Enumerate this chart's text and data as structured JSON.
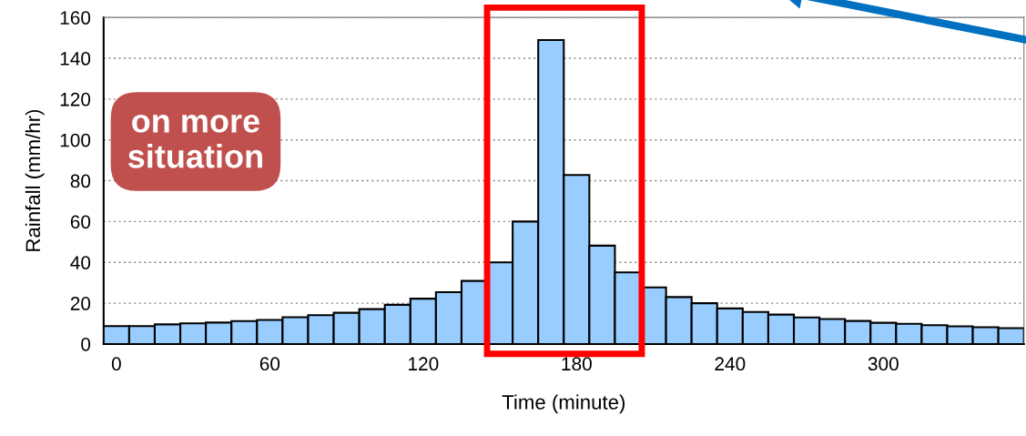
{
  "chart_data": {
    "type": "bar",
    "xlabel": "Time (minute)",
    "ylabel": "Rainfall (mm/hr)",
    "categories": [
      "0",
      null,
      null,
      null,
      null,
      null,
      "60",
      null,
      null,
      null,
      null,
      null,
      "120",
      null,
      null,
      null,
      null,
      null,
      "180",
      null,
      null,
      null,
      null,
      null,
      "240",
      null,
      null,
      null,
      null,
      null,
      "300",
      null,
      null,
      null,
      null,
      null
    ],
    "values": [
      8.8,
      8.8,
      9.6,
      10.1,
      10.5,
      11.2,
      11.8,
      13.1,
      14.1,
      15.3,
      17.1,
      19.2,
      22.2,
      25.4,
      30.9,
      40.0,
      60.0,
      148.9,
      82.8,
      48.2,
      35.1,
      27.7,
      23.0,
      20.0,
      17.4,
      15.7,
      14.4,
      13.0,
      12.2,
      11.3,
      10.4,
      9.9,
      9.2,
      8.7,
      8.2,
      7.8
    ],
    "color": "#99ccff",
    "ylim": [
      0,
      160
    ],
    "yticks": [
      0,
      20,
      40,
      60,
      80,
      100,
      120,
      140,
      160
    ],
    "grid": "y",
    "annotations": [
      "on more\nsituation"
    ]
  }
}
